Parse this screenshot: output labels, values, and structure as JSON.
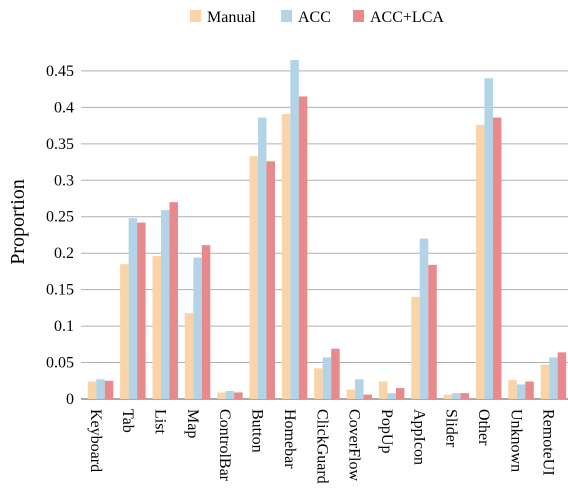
{
  "chart_data": {
    "type": "bar",
    "ylabel": "Proportion",
    "xlabel": "",
    "ylim": [
      0,
      0.465
    ],
    "yticks": [
      0,
      0.05,
      0.1,
      0.15,
      0.2,
      0.25,
      0.3,
      0.35,
      0.4,
      0.45
    ],
    "ytick_labels": [
      "0",
      "0.05",
      "0.1",
      "0.15",
      "0.2",
      "0.25",
      "0.3",
      "0.35",
      "0.4",
      "0.45"
    ],
    "grid": true,
    "legend_position": "top-center",
    "categories": [
      "Keyboard",
      "Tab",
      "List",
      "Map",
      "ControlBar",
      "Button",
      "Homebar",
      "ClickGuard",
      "CoverFlow",
      "PopUp",
      "AppIcon",
      "Slider",
      "Other",
      "Unknown",
      "RemoteUI"
    ],
    "series": [
      {
        "name": "Manual",
        "color": "#f9d4a8",
        "values": [
          0.024,
          0.185,
          0.196,
          0.118,
          0.009,
          0.333,
          0.391,
          0.042,
          0.013,
          0.024,
          0.14,
          0.006,
          0.376,
          0.026,
          0.047
        ]
      },
      {
        "name": "ACC",
        "color": "#b3d4e6",
        "values": [
          0.027,
          0.248,
          0.259,
          0.194,
          0.011,
          0.386,
          0.465,
          0.057,
          0.027,
          0.008,
          0.22,
          0.008,
          0.44,
          0.02,
          0.057
        ]
      },
      {
        "name": "ACC+LCA",
        "color": "#e8898c",
        "values": [
          0.025,
          0.242,
          0.27,
          0.211,
          0.009,
          0.326,
          0.415,
          0.069,
          0.006,
          0.015,
          0.184,
          0.008,
          0.386,
          0.024,
          0.064
        ]
      }
    ]
  }
}
